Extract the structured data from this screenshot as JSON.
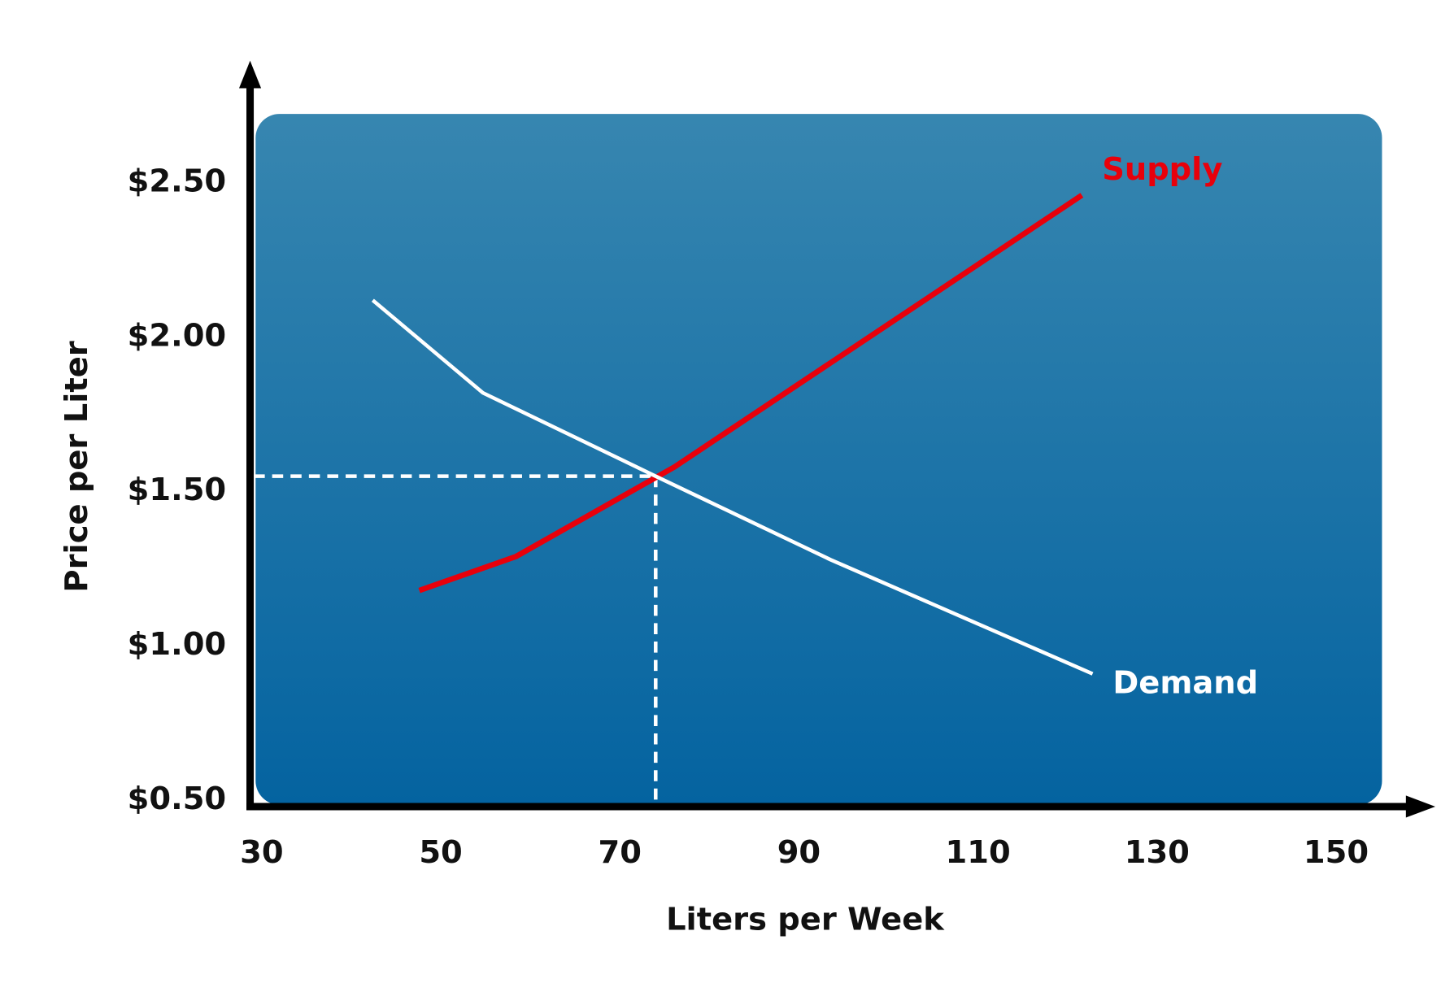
{
  "chart_data": {
    "type": "line",
    "xlabel": "Liters per Week",
    "ylabel": "Price per Liter",
    "xlim": [
      28.7,
      158
    ],
    "ylim": [
      0.48,
      2.89
    ],
    "xticks": [
      30,
      50,
      70,
      90,
      110,
      130,
      150
    ],
    "yticks": [
      {
        "value": 0.5,
        "label": "$0.50"
      },
      {
        "value": 1.0,
        "label": "$1.00"
      },
      {
        "value": 1.5,
        "label": "$1.50"
      },
      {
        "value": 2.0,
        "label": "$2.00"
      },
      {
        "value": 2.5,
        "label": "$2.50"
      }
    ],
    "series": [
      {
        "name": "Supply",
        "color": "#e8000b",
        "x": [
          47.6,
          58.4,
          76.1,
          121.6
        ],
        "values": [
          1.18,
          1.29,
          1.58,
          2.46
        ]
      },
      {
        "name": "Demand",
        "color": "#ffffff",
        "x": [
          42.4,
          54.7,
          74.0,
          93.5,
          122.8
        ],
        "values": [
          2.12,
          1.82,
          1.55,
          1.28,
          0.91
        ]
      }
    ],
    "equilibrium": {
      "x": 74,
      "y": 1.55
    }
  }
}
